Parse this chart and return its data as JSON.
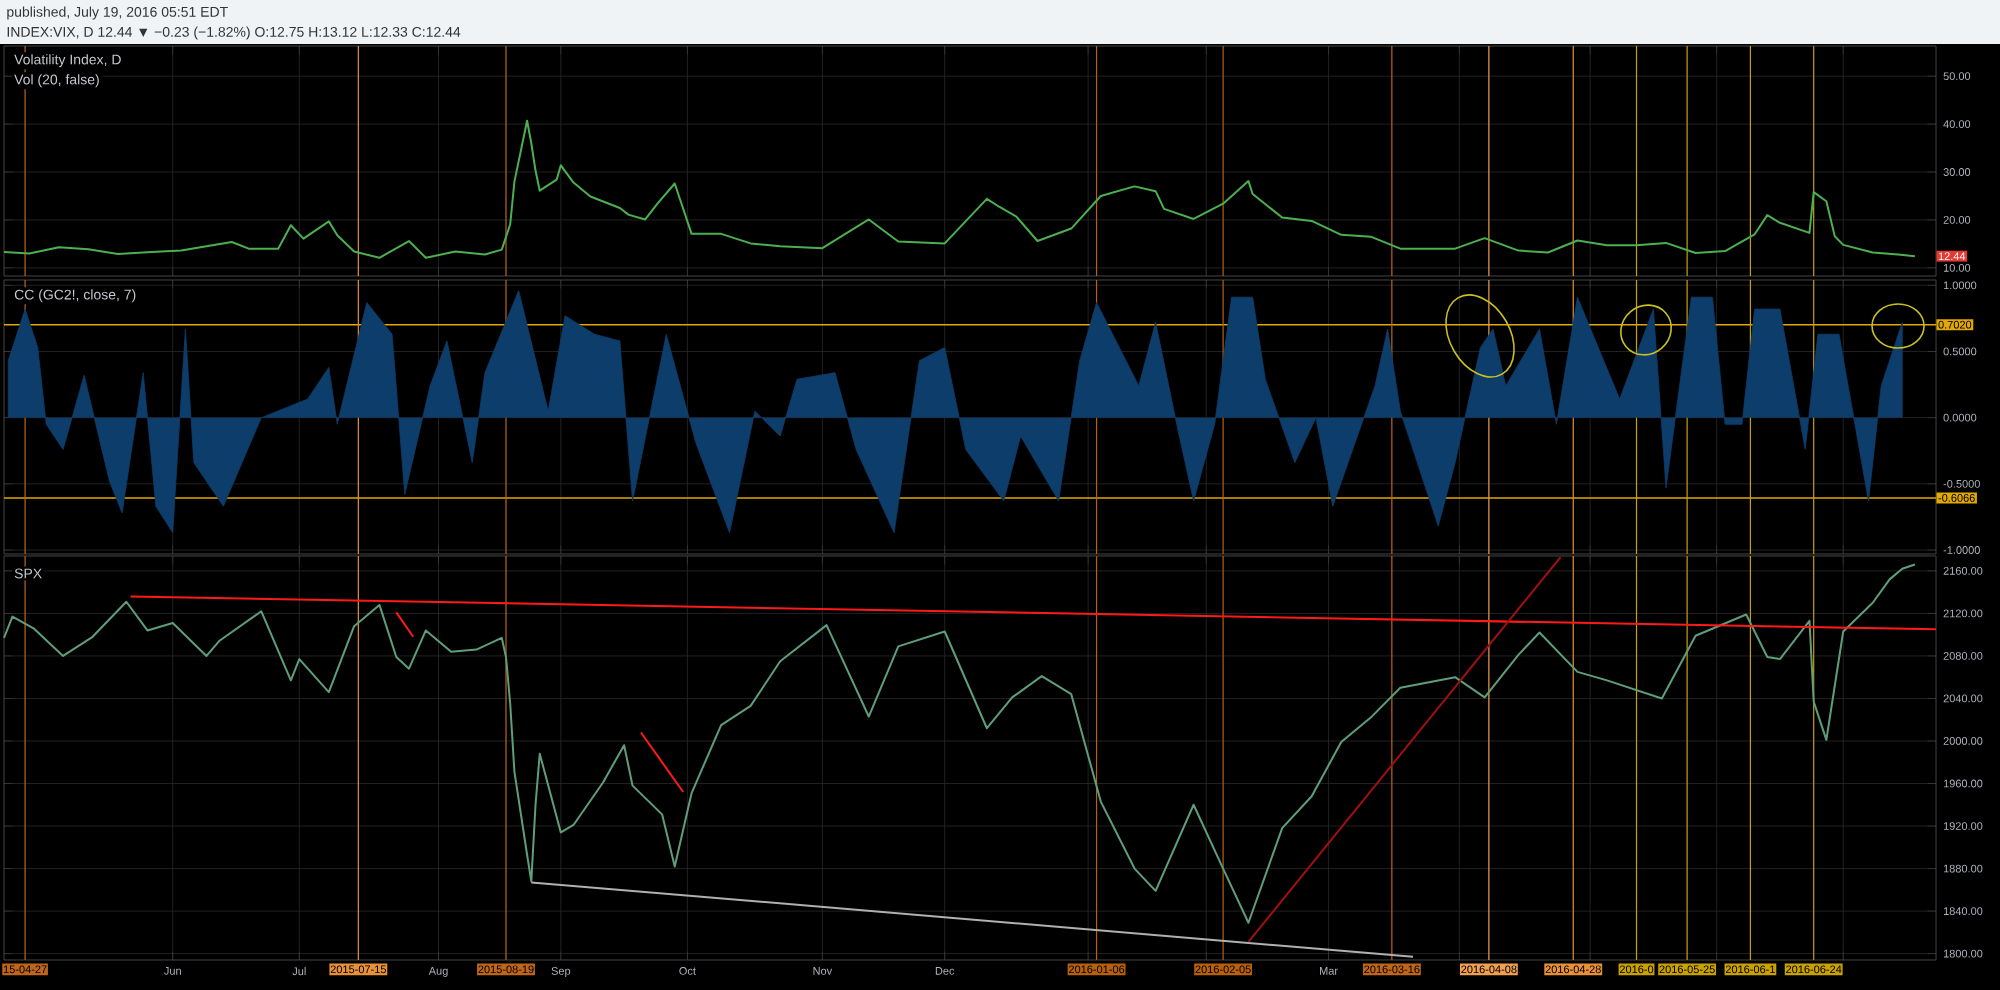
{
  "chart_data": [
    {
      "type": "line",
      "title": "Volatility Index, D",
      "subtitle": "Vol (20, false)",
      "annotations": [
        "published, July 19, 2016 05:51 EDT",
        "INDEX:VIX, D 12.44 ▼ −0.23 (−1.82%) O:12.75 H:13.12 L:12.33 C:12.44",
        {
          "text": "12.44",
          "y": 12.44
        }
      ],
      "series": [
        {
          "color": "#4caf50",
          "x": [
            "2015-04-22",
            "2015-04-28",
            "2015-05-05",
            "2015-05-12",
            "2015-05-19",
            "2015-05-27",
            "2015-06-03",
            "2015-06-09",
            "2015-06-15",
            "2015-06-19",
            "2015-06-26",
            "2015-06-29",
            "2015-07-02",
            "2015-07-08",
            "2015-07-10",
            "2015-07-14",
            "2015-07-20",
            "2015-07-27",
            "2015-07-31",
            "2015-08-07",
            "2015-08-14",
            "2015-08-18",
            "2015-08-20",
            "2015-08-21",
            "2015-08-24",
            "2015-08-25",
            "2015-08-26",
            "2015-08-27",
            "2015-08-31",
            "2015-09-01",
            "2015-09-04",
            "2015-09-08",
            "2015-09-15",
            "2015-09-17",
            "2015-09-21",
            "2015-09-24",
            "2015-09-28",
            "2015-10-02",
            "2015-10-09",
            "2015-10-16",
            "2015-10-23",
            "2015-11-02",
            "2015-11-13",
            "2015-11-20",
            "2015-12-01",
            "2015-12-11",
            "2015-12-14",
            "2015-12-18",
            "2015-12-23",
            "2015-12-31",
            "2016-01-07",
            "2016-01-15",
            "2016-01-20",
            "2016-01-22",
            "2016-01-29",
            "2016-02-05",
            "2016-02-11",
            "2016-02-12",
            "2016-02-19",
            "2016-02-26",
            "2016-03-04",
            "2016-03-11",
            "2016-03-18",
            "2016-03-31",
            "2016-04-07",
            "2016-04-15",
            "2016-04-22",
            "2016-04-29",
            "2016-05-06",
            "2016-05-13",
            "2016-05-20",
            "2016-05-27",
            "2016-06-03",
            "2016-06-10",
            "2016-06-13",
            "2016-06-16",
            "2016-06-23",
            "2016-06-24",
            "2016-06-27",
            "2016-06-29",
            "2016-07-01",
            "2016-07-08",
            "2016-07-14",
            "2016-07-18"
          ],
          "values": [
            13.3,
            13.0,
            14.3,
            13.9,
            12.9,
            13.3,
            13.6,
            14.5,
            15.4,
            14.0,
            14.0,
            18.9,
            16.1,
            19.7,
            16.8,
            13.4,
            12.1,
            15.6,
            12.1,
            13.4,
            12.8,
            13.8,
            19.1,
            28.0,
            40.7,
            36.0,
            30.3,
            26.1,
            28.4,
            31.4,
            27.8,
            24.9,
            22.5,
            21.1,
            20.1,
            23.5,
            27.6,
            17.1,
            17.1,
            15.1,
            14.5,
            14.1,
            20.1,
            15.5,
            15.1,
            24.4,
            22.7,
            20.7,
            15.6,
            18.2,
            25.0,
            27.0,
            26.0,
            22.3,
            20.2,
            23.4,
            28.1,
            25.4,
            20.5,
            19.8,
            16.9,
            16.5,
            14.0,
            14.0,
            16.2,
            13.6,
            13.2,
            15.7,
            14.7,
            14.7,
            15.2,
            13.1,
            13.5,
            17.0,
            21.0,
            19.4,
            17.3,
            25.8,
            23.9,
            16.6,
            14.8,
            13.2,
            12.8,
            12.4
          ]
        }
      ],
      "xlim": [
        "2015-04-22",
        "2016-07-23"
      ],
      "xticks": [
        {
          "value": "2015-06-01",
          "label": null
        },
        {
          "value": "2015-07-01",
          "label": null
        },
        {
          "value": "2015-08-03",
          "label": null
        },
        {
          "value": "2015-09-01",
          "label": null
        },
        {
          "value": "2015-10-01",
          "label": null
        },
        {
          "value": "2015-11-02",
          "label": null
        },
        {
          "value": "2015-12-01",
          "label": null
        },
        {
          "value": "2016-01-04",
          "label": null
        },
        {
          "value": "2016-02-01",
          "label": null
        },
        {
          "value": "2016-03-01",
          "label": null
        },
        {
          "value": "2016-04-01",
          "label": null
        },
        {
          "value": "2016-05-02",
          "label": null
        },
        {
          "value": "2016-06-01",
          "label": null
        },
        {
          "value": "2016-07-01",
          "label": null
        }
      ],
      "ylim": [
        8.3,
        56.3
      ],
      "yticks": [
        {
          "value": 10,
          "label": "10.00"
        },
        {
          "value": 20,
          "label": "20.00"
        },
        {
          "value": 30,
          "label": "30.00"
        },
        {
          "value": 40,
          "label": "40.00"
        },
        {
          "value": 50,
          "label": "50.00"
        }
      ],
      "grid": true,
      "tick_labels": "y",
      "ref_lines": [
        {
          "axis": "x",
          "value": "2015-04-27",
          "color": "#c0661a"
        },
        {
          "axis": "x",
          "value": "2015-07-15",
          "color": "#e8913a"
        },
        {
          "axis": "x",
          "value": "2015-08-19",
          "color": "#c0661a"
        },
        {
          "axis": "x",
          "value": "2016-01-06",
          "color": "#b8600b"
        },
        {
          "axis": "x",
          "value": "2016-02-05",
          "color": "#b8600b"
        },
        {
          "axis": "x",
          "value": "2016-03-16",
          "color": "#c0661a"
        },
        {
          "axis": "x",
          "value": "2016-04-08",
          "color": "#f0a050"
        },
        {
          "axis": "x",
          "value": "2016-04-28",
          "color": "#e8913a"
        },
        {
          "axis": "x",
          "value": "2016-05-13",
          "color": "#c9a100"
        },
        {
          "axis": "x",
          "value": "2016-05-25",
          "color": "#c9a100"
        },
        {
          "axis": "x",
          "value": "2016-06-09",
          "color": "#c9a100"
        },
        {
          "axis": "x",
          "value": "2016-06-24",
          "color": "#c9a100"
        }
      ]
    },
    {
      "type": "area",
      "title": "CC (GC2!, close, 7)",
      "series": [
        {
          "color": "#0d3d6b",
          "x": [
            "2015-04-23",
            "2015-04-27",
            "2015-04-30",
            "2015-05-02",
            "2015-05-06",
            "2015-05-11",
            "2015-05-17",
            "2015-05-20",
            "2015-05-25",
            "2015-05-28",
            "2015-06-01",
            "2015-06-04",
            "2015-06-06",
            "2015-06-13",
            "2015-06-22",
            "2015-07-03",
            "2015-07-08",
            "2015-07-10",
            "2015-07-17",
            "2015-07-23",
            "2015-07-26",
            "2015-08-01",
            "2015-08-05",
            "2015-08-11",
            "2015-08-14",
            "2015-08-22",
            "2015-08-29",
            "2015-09-02",
            "2015-09-09",
            "2015-09-15",
            "2015-09-18",
            "2015-09-26",
            "2015-10-03",
            "2015-10-11",
            "2015-10-17",
            "2015-10-23",
            "2015-10-27",
            "2015-11-05",
            "2015-11-10",
            "2015-11-19",
            "2015-11-25",
            "2015-12-01",
            "2015-12-06",
            "2015-12-15",
            "2015-12-19",
            "2015-12-28",
            "2016-01-02",
            "2016-01-06",
            "2016-01-16",
            "2016-01-20",
            "2016-01-25",
            "2016-01-29",
            "2016-02-03",
            "2016-02-07",
            "2016-02-12",
            "2016-02-15",
            "2016-02-22",
            "2016-02-27",
            "2016-03-02",
            "2016-03-12",
            "2016-03-15",
            "2016-03-18",
            "2016-03-27",
            "2016-03-31",
            "2016-04-06",
            "2016-04-09",
            "2016-04-12",
            "2016-04-20",
            "2016-04-24",
            "2016-04-29",
            "2016-05-09",
            "2016-05-17",
            "2016-05-20",
            "2016-05-26",
            "2016-05-31",
            "2016-06-03",
            "2016-06-07",
            "2016-06-10",
            "2016-06-16",
            "2016-06-22",
            "2016-06-25",
            "2016-06-30",
            "2016-07-07",
            "2016-07-10",
            "2016-07-15"
          ],
          "values": [
            0.43,
            0.82,
            0.53,
            -0.05,
            -0.24,
            0.32,
            -0.48,
            -0.72,
            0.34,
            -0.67,
            -0.87,
            0.67,
            -0.34,
            -0.67,
            0.0,
            0.14,
            0.38,
            -0.05,
            0.87,
            0.63,
            -0.58,
            0.24,
            0.58,
            -0.34,
            0.34,
            0.96,
            0.05,
            0.77,
            0.63,
            0.58,
            -0.63,
            0.63,
            -0.19,
            -0.87,
            0.05,
            -0.14,
            0.29,
            0.34,
            -0.24,
            -0.87,
            0.43,
            0.53,
            -0.24,
            -0.63,
            -0.14,
            -0.63,
            0.43,
            0.87,
            0.24,
            0.72,
            -0.05,
            -0.63,
            -0.05,
            0.91,
            0.91,
            0.29,
            -0.34,
            0.0,
            -0.67,
            0.24,
            0.67,
            0.05,
            -0.82,
            -0.34,
            0.53,
            0.67,
            0.24,
            0.67,
            -0.05,
            0.91,
            0.14,
            0.82,
            -0.53,
            0.91,
            0.91,
            -0.05,
            -0.05,
            0.82,
            0.82,
            -0.24,
            0.63,
            0.63,
            -0.63,
            0.24,
            0.72
          ]
        }
      ],
      "xlim": [
        "2015-04-22",
        "2016-07-23"
      ],
      "xticks": [
        {
          "value": "2015-06-01",
          "label": null
        },
        {
          "value": "2015-07-01",
          "label": null
        },
        {
          "value": "2015-08-03",
          "label": null
        },
        {
          "value": "2015-09-01",
          "label": null
        },
        {
          "value": "2015-10-01",
          "label": null
        },
        {
          "value": "2015-11-02",
          "label": null
        },
        {
          "value": "2015-12-01",
          "label": null
        },
        {
          "value": "2016-01-04",
          "label": null
        },
        {
          "value": "2016-02-01",
          "label": null
        },
        {
          "value": "2016-03-01",
          "label": null
        },
        {
          "value": "2016-04-01",
          "label": null
        },
        {
          "value": "2016-05-02",
          "label": null
        },
        {
          "value": "2016-06-01",
          "label": null
        },
        {
          "value": "2016-07-01",
          "label": null
        }
      ],
      "ylim": [
        -1.03,
        1.04
      ],
      "yticks": [
        {
          "value": 1,
          "label": "1.0000"
        },
        {
          "value": 0.5,
          "label": "0.5000"
        },
        {
          "value": 0,
          "label": "0.0000"
        },
        {
          "value": -0.5,
          "label": "-0.5000"
        },
        {
          "value": -1,
          "label": "-1.0000"
        }
      ],
      "grid": true,
      "tick_labels": "y",
      "ref_lines": [
        {
          "axis": "y",
          "value": 0.702,
          "label": "0.7020",
          "color": "#e0a800"
        },
        {
          "axis": "y",
          "value": -0.6066,
          "label": "-0.6066",
          "color": "#e0a800"
        },
        {
          "axis": "x",
          "value": "2015-04-27",
          "color": "#c0661a"
        },
        {
          "axis": "x",
          "value": "2015-07-15",
          "color": "#e8913a"
        },
        {
          "axis": "x",
          "value": "2015-08-19",
          "color": "#c0661a"
        },
        {
          "axis": "x",
          "value": "2016-01-06",
          "color": "#b8600b"
        },
        {
          "axis": "x",
          "value": "2016-02-05",
          "color": "#b8600b"
        },
        {
          "axis": "x",
          "value": "2016-03-16",
          "color": "#c0661a"
        },
        {
          "axis": "x",
          "value": "2016-04-08",
          "color": "#f0a050"
        },
        {
          "axis": "x",
          "value": "2016-04-28",
          "color": "#e8913a"
        },
        {
          "axis": "x",
          "value": "2016-05-13",
          "color": "#c9a100"
        },
        {
          "axis": "x",
          "value": "2016-05-25",
          "color": "#c9a100"
        },
        {
          "axis": "x",
          "value": "2016-06-09",
          "color": "#c9a100"
        },
        {
          "axis": "x",
          "value": "2016-06-24",
          "color": "#c9a100"
        }
      ]
    },
    {
      "type": "line",
      "title": "SPX",
      "series": [
        {
          "color": "#5f9e7a",
          "x": [
            "2015-04-22",
            "2015-04-24",
            "2015-04-29",
            "2015-05-06",
            "2015-05-13",
            "2015-05-21",
            "2015-05-26",
            "2015-06-01",
            "2015-06-09",
            "2015-06-12",
            "2015-06-22",
            "2015-06-29",
            "2015-07-01",
            "2015-07-08",
            "2015-07-14",
            "2015-07-20",
            "2015-07-24",
            "2015-07-27",
            "2015-07-31",
            "2015-08-06",
            "2015-08-12",
            "2015-08-18",
            "2015-08-19",
            "2015-08-20",
            "2015-08-21",
            "2015-08-24",
            "2015-08-25",
            "2015-08-26",
            "2015-08-27",
            "2015-09-01",
            "2015-09-04",
            "2015-09-11",
            "2015-09-16",
            "2015-09-18",
            "2015-09-25",
            "2015-09-28",
            "2015-10-02",
            "2015-10-09",
            "2015-10-16",
            "2015-10-23",
            "2015-11-03",
            "2015-11-13",
            "2015-11-20",
            "2015-12-01",
            "2015-12-11",
            "2015-12-17",
            "2015-12-24",
            "2015-12-31",
            "2016-01-07",
            "2016-01-15",
            "2016-01-20",
            "2016-01-29",
            "2016-02-05",
            "2016-02-11",
            "2016-02-19",
            "2016-02-26",
            "2016-03-04",
            "2016-03-11",
            "2016-03-18",
            "2016-03-31",
            "2016-04-07",
            "2016-04-15",
            "2016-04-20",
            "2016-04-29",
            "2016-05-06",
            "2016-05-19",
            "2016-05-27",
            "2016-06-08",
            "2016-06-13",
            "2016-06-16",
            "2016-06-23",
            "2016-06-24",
            "2016-06-27",
            "2016-07-01",
            "2016-07-08",
            "2016-07-12",
            "2016-07-15",
            "2016-07-18"
          ],
          "values": [
            2097,
            2117,
            2106,
            2080,
            2098,
            2131,
            2104,
            2111,
            2080,
            2094,
            2122,
            2057,
            2077,
            2046,
            2108,
            2128,
            2079,
            2068,
            2104,
            2084,
            2086,
            2097,
            2079,
            2035,
            1971,
            1893,
            1868,
            1940,
            1988,
            1914,
            1921,
            1961,
            1996,
            1958,
            1931,
            1882,
            1951,
            2015,
            2033,
            2075,
            2109,
            2023,
            2089,
            2103,
            2012,
            2041,
            2061,
            2044,
            1943,
            1880,
            1859,
            1940,
            1880,
            1829,
            1918,
            1948,
            1999,
            2022,
            2050,
            2060,
            2041,
            2081,
            2102,
            2065,
            2057,
            2040,
            2099,
            2119,
            2079,
            2077,
            2113,
            2037,
            2001,
            2103,
            2130,
            2152,
            2162,
            2166
          ]
        },
        {
          "color": "#ff1a1a",
          "x": [
            "2015-05-22",
            "2016-07-23"
          ],
          "values": [
            2136,
            2105
          ]
        },
        {
          "color": "#ff1a1a",
          "x": [
            "2015-07-24",
            "2015-07-28"
          ],
          "values": [
            2121,
            2098
          ]
        },
        {
          "color": "#ff1a1a",
          "x": [
            "2015-09-20",
            "2015-09-30"
          ],
          "values": [
            2008,
            1952
          ]
        },
        {
          "color": "#b0b0b0",
          "x": [
            "2015-08-25",
            "2016-03-21"
          ],
          "values": [
            1867,
            1797
          ]
        },
        {
          "color": "#a01010",
          "x": [
            "2016-02-11",
            "2016-04-25"
          ],
          "values": [
            1811,
            2173
          ]
        }
      ],
      "xlim": [
        "2015-04-22",
        "2016-07-23"
      ],
      "xticks": [
        {
          "value": "2015-06-01",
          "label": "Jun"
        },
        {
          "value": "2015-07-01",
          "label": "Jul"
        },
        {
          "value": "2015-08-03",
          "label": "Aug"
        },
        {
          "value": "2015-09-01",
          "label": "Sep"
        },
        {
          "value": "2015-10-01",
          "label": "Oct"
        },
        {
          "value": "2015-11-02",
          "label": "Nov"
        },
        {
          "value": "2015-12-01",
          "label": "Dec"
        },
        {
          "value": "2016-01-04",
          "label": null
        },
        {
          "value": "2016-02-01",
          "label": null
        },
        {
          "value": "2016-03-01",
          "label": "Mar"
        },
        {
          "value": "2016-04-01",
          "label": null
        },
        {
          "value": "2016-05-02",
          "label": null
        },
        {
          "value": "2016-06-01",
          "label": null
        },
        {
          "value": "2016-07-01",
          "label": null
        }
      ],
      "ylim": [
        1794,
        2174
      ],
      "yticks": [
        {
          "value": 1800,
          "label": "1800.00"
        },
        {
          "value": 1840,
          "label": "1840.00"
        },
        {
          "value": 1880,
          "label": "1880.00"
        },
        {
          "value": 1920,
          "label": "1920.00"
        },
        {
          "value": 1960,
          "label": "1960.00"
        },
        {
          "value": 2000,
          "label": "2000.00"
        },
        {
          "value": 2040,
          "label": "2040.00"
        },
        {
          "value": 2080,
          "label": "2080.00"
        },
        {
          "value": 2120,
          "label": "2120.00"
        },
        {
          "value": 2160,
          "label": "2160.00"
        }
      ],
      "grid": true,
      "ref_lines": [
        {
          "axis": "x",
          "value": "2015-04-27",
          "label": "15-04-27",
          "color": "#c0661a"
        },
        {
          "axis": "x",
          "value": "2015-07-15",
          "label": "2015-07-15",
          "color": "#e8913a"
        },
        {
          "axis": "x",
          "value": "2015-08-19",
          "label": "2015-08-19",
          "color": "#c0661a"
        },
        {
          "axis": "x",
          "value": "2016-01-06",
          "label": "2016-01-06",
          "color": "#b8600b"
        },
        {
          "axis": "x",
          "value": "2016-02-05",
          "label": "2016-02-05",
          "color": "#b8600b"
        },
        {
          "axis": "x",
          "value": "2016-03-16",
          "label": "2016-03-16",
          "color": "#c0661a"
        },
        {
          "axis": "x",
          "value": "2016-04-08",
          "label": "2016-04-08",
          "color": "#f0a050"
        },
        {
          "axis": "x",
          "value": "2016-04-28",
          "label": "2016-04-28",
          "color": "#e8913a"
        },
        {
          "axis": "x",
          "value": "2016-05-13",
          "label": "2016-0",
          "color": "#c9a100"
        },
        {
          "axis": "x",
          "value": "2016-05-25",
          "label": "2016-05-25",
          "color": "#c9a100"
        },
        {
          "axis": "x",
          "value": "2016-06-09",
          "label": "2016-06-1",
          "color": "#c9a100"
        },
        {
          "axis": "x",
          "value": "2016-06-24",
          "label": "2016-06-24",
          "color": "#c9a100"
        }
      ]
    }
  ]
}
